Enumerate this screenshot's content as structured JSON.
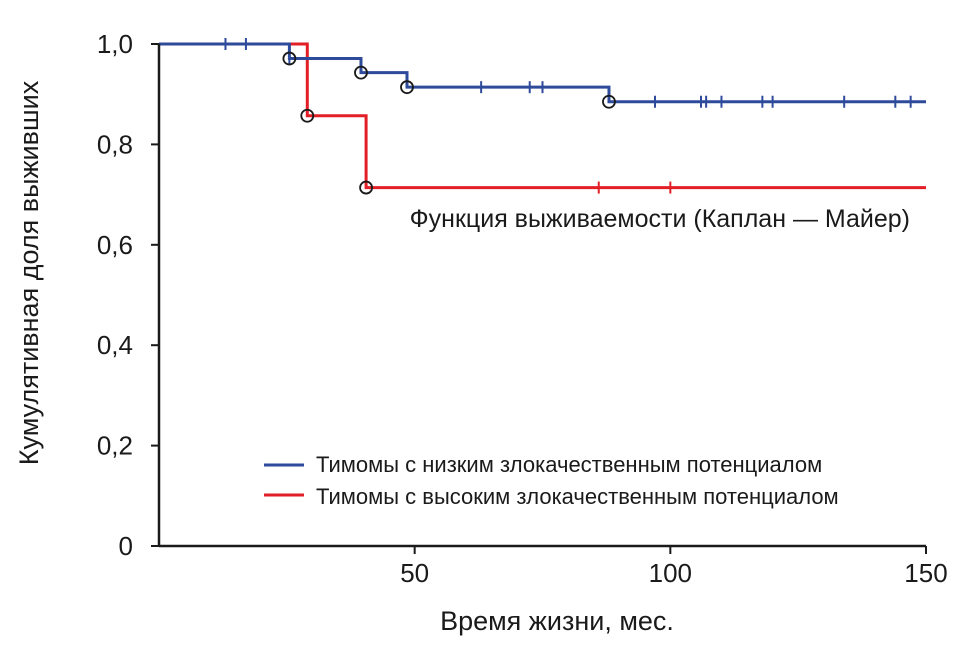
{
  "chart_data": {
    "type": "line",
    "subtype": "kaplan-meier",
    "title": "",
    "annotation": "Функция выживаемости (Каплан — Майер)",
    "xlabel": "Время жизни, мес.",
    "ylabel": "Кумулятивная доля выживших",
    "xlim": [
      0,
      150
    ],
    "ylim": [
      0,
      1
    ],
    "x_ticks": [
      50,
      100,
      150
    ],
    "y_tick_labels": [
      "0",
      "0,2",
      "0,4",
      "0,6",
      "0,8",
      "1,0"
    ],
    "y_ticks": [
      0,
      0.2,
      0.4,
      0.6,
      0.8,
      1.0
    ],
    "grid": false,
    "legend_position": "bottom-right",
    "series": [
      {
        "name": "Тимомы с низким злокачественным потенциалом",
        "color": "#2e4a9a",
        "steps": [
          [
            0,
            1.0
          ],
          [
            25.5,
            0.971
          ],
          [
            39.5,
            0.943
          ],
          [
            48.5,
            0.914
          ],
          [
            88,
            0.885
          ],
          [
            150,
            0.885
          ]
        ],
        "events": [
          [
            25.5,
            0.971
          ],
          [
            39.5,
            0.943
          ],
          [
            48.5,
            0.914
          ],
          [
            88,
            0.885
          ]
        ],
        "censored": [
          [
            13,
            1.0
          ],
          [
            17,
            1.0
          ],
          [
            25.5,
            0.971
          ],
          [
            63,
            0.914
          ],
          [
            72.5,
            0.914
          ],
          [
            75,
            0.914
          ],
          [
            97,
            0.885
          ],
          [
            106,
            0.885
          ],
          [
            107,
            0.885
          ],
          [
            110,
            0.885
          ],
          [
            118,
            0.885
          ],
          [
            120,
            0.885
          ],
          [
            134,
            0.885
          ],
          [
            144,
            0.885
          ],
          [
            147,
            0.885
          ]
        ]
      },
      {
        "name": "Тимомы с высоким злокачественным потенциалом",
        "color": "#e21f26",
        "steps": [
          [
            0,
            1.0
          ],
          [
            29,
            0.857
          ],
          [
            40.5,
            0.714
          ],
          [
            150,
            0.714
          ]
        ],
        "events": [
          [
            29,
            0.857
          ],
          [
            40.5,
            0.714
          ]
        ],
        "censored": [
          [
            86,
            0.714
          ],
          [
            100,
            0.714
          ]
        ]
      }
    ]
  }
}
